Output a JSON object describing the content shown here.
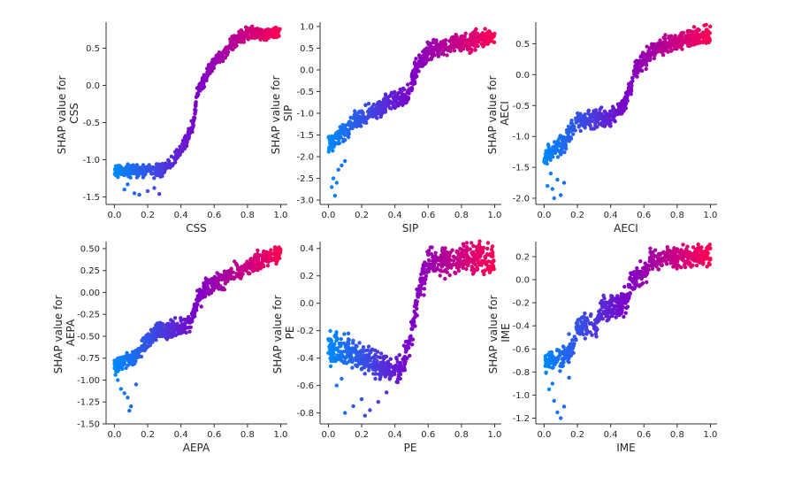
{
  "figure": {
    "y_label_prefix": "SHAP value for",
    "color_low": "#008afb",
    "color_high": "#ff0052"
  },
  "chart_data": [
    {
      "type": "scatter",
      "feature": "CSS",
      "xlabel": "CSS",
      "ylabel": "SHAP value for CSS",
      "xlim": [
        -0.05,
        1.04
      ],
      "ylim": [
        -1.6,
        0.85
      ],
      "xticks": [
        "0.0",
        "0.2",
        "0.4",
        "0.6",
        "0.8",
        "1.0"
      ],
      "yticks": [
        "-1.5",
        "-1.0",
        "-0.5",
        "0.0",
        "0.5"
      ],
      "trend": [
        [
          0.0,
          -1.15
        ],
        [
          0.28,
          -1.15
        ],
        [
          0.36,
          -1.0
        ],
        [
          0.43,
          -0.75
        ],
        [
          0.47,
          -0.55
        ],
        [
          0.5,
          -0.1
        ],
        [
          0.53,
          0.05
        ],
        [
          0.6,
          0.3
        ],
        [
          0.65,
          0.4
        ],
        [
          0.7,
          0.55
        ],
        [
          0.75,
          0.65
        ],
        [
          0.8,
          0.7
        ],
        [
          1.0,
          0.7
        ]
      ],
      "spread": 0.08,
      "outliers": [
        [
          0.06,
          -1.4
        ],
        [
          0.12,
          -1.45
        ],
        [
          0.2,
          -1.42
        ],
        [
          0.15,
          -1.47
        ],
        [
          0.24,
          -1.38
        ],
        [
          0.08,
          -1.33
        ],
        [
          0.27,
          -1.46
        ]
      ]
    },
    {
      "type": "scatter",
      "feature": "SIP",
      "xlabel": "SIP",
      "ylabel": "SHAP value for SIP",
      "xlim": [
        -0.05,
        1.04
      ],
      "ylim": [
        -3.1,
        1.1
      ],
      "xticks": [
        "0.0",
        "0.2",
        "0.4",
        "0.6",
        "0.8",
        "1.0"
      ],
      "yticks": [
        "-3.0",
        "-2.5",
        "-2.0",
        "-1.5",
        "-1.0",
        "-0.5",
        "0.0",
        "0.5",
        "1.0"
      ],
      "trend": [
        [
          0.0,
          -1.7
        ],
        [
          0.05,
          -1.6
        ],
        [
          0.15,
          -1.2
        ],
        [
          0.3,
          -0.9
        ],
        [
          0.4,
          -0.7
        ],
        [
          0.48,
          -0.6
        ],
        [
          0.5,
          -0.3
        ],
        [
          0.55,
          0.2
        ],
        [
          0.6,
          0.4
        ],
        [
          0.7,
          0.55
        ],
        [
          0.8,
          0.65
        ],
        [
          1.0,
          0.75
        ]
      ],
      "spread": 0.22,
      "outliers": [
        [
          0.02,
          -2.7
        ],
        [
          0.04,
          -2.9
        ],
        [
          0.03,
          -2.5
        ],
        [
          0.06,
          -2.3
        ],
        [
          0.08,
          -2.2
        ],
        [
          0.05,
          -2.6
        ],
        [
          0.1,
          -2.1
        ]
      ]
    },
    {
      "type": "scatter",
      "feature": "AECI",
      "xlabel": "AECI",
      "ylabel": "SHAP value for AECI",
      "xlim": [
        -0.05,
        1.04
      ],
      "ylim": [
        -2.1,
        0.85
      ],
      "xticks": [
        "0.0",
        "0.2",
        "0.4",
        "0.6",
        "0.8",
        "1.0"
      ],
      "yticks": [
        "-2.0",
        "-1.5",
        "-1.0",
        "-0.5",
        "0.0",
        "0.5"
      ],
      "trend": [
        [
          0.0,
          -1.35
        ],
        [
          0.12,
          -1.1
        ],
        [
          0.2,
          -0.75
        ],
        [
          0.4,
          -0.7
        ],
        [
          0.48,
          -0.5
        ],
        [
          0.52,
          -0.2
        ],
        [
          0.55,
          0.1
        ],
        [
          0.6,
          0.25
        ],
        [
          0.7,
          0.45
        ],
        [
          0.8,
          0.55
        ],
        [
          1.0,
          0.65
        ]
      ],
      "spread": 0.14,
      "outliers": [
        [
          0.02,
          -1.8
        ],
        [
          0.05,
          -1.85
        ],
        [
          0.08,
          -1.7
        ],
        [
          0.1,
          -1.95
        ],
        [
          0.04,
          -1.6
        ],
        [
          0.12,
          -1.75
        ],
        [
          0.06,
          -2.0
        ]
      ]
    },
    {
      "type": "scatter",
      "feature": "AEPA",
      "xlabel": "AEPA",
      "ylabel": "SHAP value for AEPA",
      "xlim": [
        -0.05,
        1.04
      ],
      "ylim": [
        -1.5,
        0.58
      ],
      "xticks": [
        "0.0",
        "0.2",
        "0.4",
        "0.6",
        "0.8",
        "1.0"
      ],
      "yticks": [
        "-1.50",
        "-1.25",
        "-1.00",
        "-0.75",
        "-0.50",
        "-0.25",
        "0.00",
        "0.25",
        "0.50"
      ],
      "trend": [
        [
          0.0,
          -0.85
        ],
        [
          0.12,
          -0.75
        ],
        [
          0.2,
          -0.55
        ],
        [
          0.25,
          -0.45
        ],
        [
          0.4,
          -0.4
        ],
        [
          0.47,
          -0.3
        ],
        [
          0.5,
          -0.1
        ],
        [
          0.55,
          0.05
        ],
        [
          0.6,
          0.1
        ],
        [
          0.7,
          0.2
        ],
        [
          0.85,
          0.35
        ],
        [
          1.0,
          0.45
        ]
      ],
      "spread": 0.1,
      "outliers": [
        [
          0.04,
          -1.1
        ],
        [
          0.08,
          -1.2
        ],
        [
          0.1,
          -1.3
        ],
        [
          0.06,
          -1.15
        ],
        [
          0.09,
          -1.35
        ],
        [
          0.13,
          -1.05
        ],
        [
          0.02,
          -1.0
        ]
      ]
    },
    {
      "type": "scatter",
      "feature": "PE",
      "xlabel": "PE",
      "ylabel": "SHAP value for PE",
      "xlim": [
        -0.05,
        1.04
      ],
      "ylim": [
        -0.88,
        0.45
      ],
      "xticks": [
        "0.0",
        "0.2",
        "0.4",
        "0.6",
        "0.8",
        "1.0"
      ],
      "yticks": [
        "-0.8",
        "-0.6",
        "-0.4",
        "-0.2",
        "0.0",
        "0.2",
        "0.4"
      ],
      "trend": [
        [
          0.0,
          -0.33
        ],
        [
          0.1,
          -0.35
        ],
        [
          0.2,
          -0.4
        ],
        [
          0.3,
          -0.45
        ],
        [
          0.38,
          -0.5
        ],
        [
          0.45,
          -0.45
        ],
        [
          0.5,
          -0.2
        ],
        [
          0.55,
          0.1
        ],
        [
          0.6,
          0.3
        ],
        [
          0.7,
          0.32
        ],
        [
          1.0,
          0.32
        ]
      ],
      "spread": 0.1,
      "outliers": [
        [
          0.05,
          -0.6
        ],
        [
          0.1,
          -0.8
        ],
        [
          0.15,
          -0.75
        ],
        [
          0.2,
          -0.7
        ],
        [
          0.25,
          -0.78
        ],
        [
          0.08,
          -0.55
        ],
        [
          0.3,
          -0.72
        ],
        [
          0.35,
          -0.65
        ],
        [
          0.05,
          -0.25
        ],
        [
          0.12,
          -0.22
        ],
        [
          0.22,
          -0.82
        ]
      ]
    },
    {
      "type": "scatter",
      "feature": "IME",
      "xlabel": "IME",
      "ylabel": "SHAP value for IME",
      "xlim": [
        -0.05,
        1.04
      ],
      "ylim": [
        -1.25,
        0.33
      ],
      "xticks": [
        "0.0",
        "0.2",
        "0.4",
        "0.6",
        "0.8",
        "1.0"
      ],
      "yticks": [
        "-1.2",
        "-1.0",
        "-0.8",
        "-0.6",
        "-0.4",
        "-0.2",
        "0.0",
        "0.2"
      ],
      "trend": [
        [
          0.0,
          -0.7
        ],
        [
          0.12,
          -0.68
        ],
        [
          0.18,
          -0.55
        ],
        [
          0.2,
          -0.4
        ],
        [
          0.32,
          -0.4
        ],
        [
          0.35,
          -0.25
        ],
        [
          0.5,
          -0.2
        ],
        [
          0.52,
          0.0
        ],
        [
          0.6,
          0.05
        ],
        [
          0.63,
          0.15
        ],
        [
          0.75,
          0.2
        ],
        [
          1.0,
          0.22
        ]
      ],
      "spread": 0.1,
      "outliers": [
        [
          0.03,
          -0.95
        ],
        [
          0.06,
          -1.05
        ],
        [
          0.08,
          -1.15
        ],
        [
          0.1,
          -1.2
        ],
        [
          0.05,
          -0.9
        ],
        [
          0.12,
          -1.1
        ],
        [
          0.15,
          -0.85
        ]
      ]
    }
  ]
}
